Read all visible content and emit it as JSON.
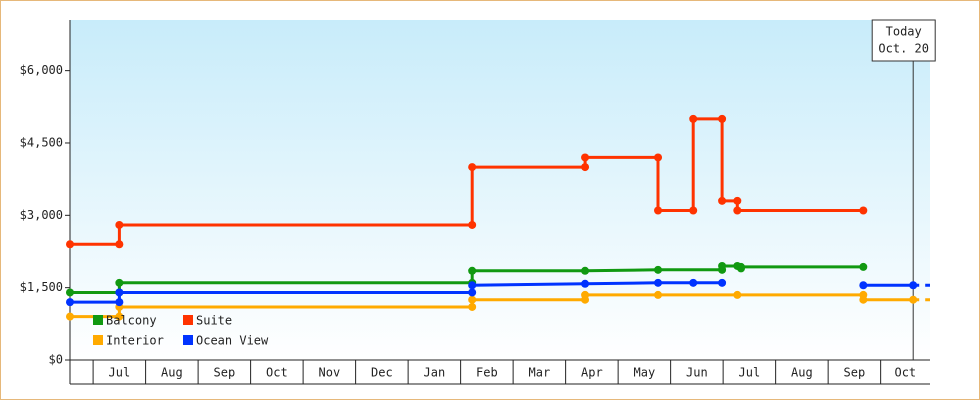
{
  "chart_data": {
    "type": "step-line",
    "xlim": [
      -0.44,
      15.94
    ],
    "xticks": [
      {
        "value": 0,
        "label": "Jul"
      },
      {
        "value": 1,
        "label": "Aug"
      },
      {
        "value": 2,
        "label": "Sep"
      },
      {
        "value": 3,
        "label": "Oct"
      },
      {
        "value": 4,
        "label": "Nov"
      },
      {
        "value": 5,
        "label": "Dec"
      },
      {
        "value": 6,
        "label": "Jan"
      },
      {
        "value": 7,
        "label": "Feb"
      },
      {
        "value": 8,
        "label": "Mar"
      },
      {
        "value": 9,
        "label": "Apr"
      },
      {
        "value": 10,
        "label": "May"
      },
      {
        "value": 11,
        "label": "Jun"
      },
      {
        "value": 12,
        "label": "Jul"
      },
      {
        "value": 13,
        "label": "Aug"
      },
      {
        "value": 14,
        "label": "Sep"
      },
      {
        "value": 15,
        "label": "Oct"
      }
    ],
    "ylim": [
      0,
      7050
    ],
    "yticks": [
      {
        "value": 0,
        "label": "$0"
      },
      {
        "value": 1500,
        "label": "$1,500"
      },
      {
        "value": 3000,
        "label": "$3,000"
      },
      {
        "value": 4500,
        "label": "$4,500"
      },
      {
        "value": 6000,
        "label": "$6,000"
      }
    ],
    "legend": "bottom-left",
    "annotation": {
      "x": 15.62,
      "lines": [
        "Today",
        "Oct. 20"
      ]
    },
    "series": [
      {
        "name": "Balcony",
        "color": "#119911",
        "x": [
          -0.44,
          0.5,
          0.5,
          7.22,
          7.22,
          9.37,
          10.76,
          11.98,
          11.98,
          12.27,
          12.34,
          12.34,
          14.67
        ],
        "values": [
          1400,
          1400,
          1600,
          1600,
          1850,
          1850,
          1870,
          1870,
          1950,
          1950,
          1900,
          1930,
          1930
        ]
      },
      {
        "name": "Suite",
        "color": "#ff3300",
        "x": [
          -0.44,
          0.5,
          0.5,
          7.22,
          7.22,
          9.37,
          9.37,
          10.76,
          10.76,
          11.43,
          11.43,
          11.98,
          11.98,
          12.27,
          12.27,
          14.67
        ],
        "values": [
          2400,
          2400,
          2800,
          2800,
          4000,
          4000,
          4200,
          4200,
          3100,
          3100,
          5000,
          5000,
          3300,
          3300,
          3100,
          3100
        ]
      },
      {
        "name": "Interior",
        "color": "#ffaa00",
        "x": [
          -0.44,
          0.5,
          0.5,
          7.22,
          7.22,
          9.37,
          9.37,
          10.76,
          12.27,
          14.67,
          14.67,
          15.62
        ],
        "values": [
          900,
          900,
          1100,
          1100,
          1250,
          1250,
          1350,
          1350,
          1350,
          1350,
          1250,
          1250
        ]
      },
      {
        "name": "Ocean View",
        "color": "#0033ff",
        "x": [
          -0.44,
          0.5,
          0.5,
          7.22,
          7.22,
          9.37,
          10.76,
          11.43,
          11.98,
          null,
          14.67,
          15.62
        ],
        "values": [
          1200,
          1200,
          1400,
          1400,
          1550,
          1580,
          1600,
          1600,
          1600,
          null,
          1550,
          1550
        ]
      }
    ]
  }
}
